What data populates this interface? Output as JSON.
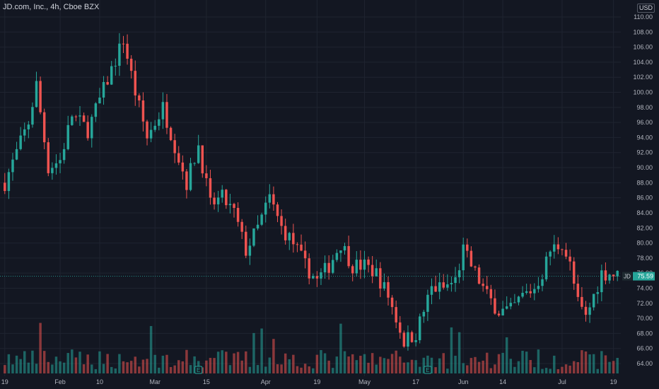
{
  "title": "JD.com, Inc., 4h, Cboe BZX",
  "currency": "USD",
  "ticker": "JD",
  "last_price_label": "75.59",
  "colors": {
    "background": "#131722",
    "up": "#26a69a",
    "down": "#ef5350",
    "grid": "#1f2430",
    "axis_text": "#b2b5be",
    "price_badge": "#26a69a"
  },
  "chart_data": {
    "type": "candlestick",
    "interval": "4h",
    "y_axis": {
      "position": "right",
      "ylim": [
        62.5,
        111.5
      ],
      "ticks": [
        64,
        66,
        68,
        70,
        72,
        74,
        76,
        78,
        80,
        82,
        84,
        86,
        88,
        90,
        92,
        94,
        96,
        98,
        100,
        102,
        104,
        106,
        108,
        110
      ]
    },
    "y_tick_labels": [
      "64.00",
      "66.00",
      "68.00",
      "70.00",
      "72.00",
      "74.00",
      "76.00",
      "78.00",
      "80.00",
      "82.00",
      "84.00",
      "86.00",
      "88.00",
      "90.00",
      "92.00",
      "94.00",
      "96.00",
      "98.00",
      "100.00",
      "102.00",
      "104.00",
      "106.00",
      "108.00",
      "110.00"
    ],
    "x_ticks": [
      {
        "label": "19",
        "bar": 0
      },
      {
        "label": "Feb",
        "bar": 14
      },
      {
        "label": "10",
        "bar": 24
      },
      {
        "label": "Mar",
        "bar": 38
      },
      {
        "label": "15",
        "bar": 51
      },
      {
        "label": "Apr",
        "bar": 66
      },
      {
        "label": "19",
        "bar": 79
      },
      {
        "label": "May",
        "bar": 91
      },
      {
        "label": "17",
        "bar": 104
      },
      {
        "label": "Jun",
        "bar": 116
      },
      {
        "label": "14",
        "bar": 126
      },
      {
        "label": "Jul",
        "bar": 141
      },
      {
        "label": "19",
        "bar": 154
      }
    ],
    "close_path_anchors": [
      [
        0,
        88.0
      ],
      [
        3,
        92.0
      ],
      [
        6,
        96.0
      ],
      [
        8,
        101.0
      ],
      [
        11,
        90.0
      ],
      [
        14,
        91.0
      ],
      [
        17,
        97.0
      ],
      [
        21,
        95.0
      ],
      [
        24,
        99.0
      ],
      [
        27,
        103.0
      ],
      [
        30,
        107.0
      ],
      [
        33,
        100.0
      ],
      [
        36,
        94.0
      ],
      [
        40,
        98.0
      ],
      [
        43,
        93.0
      ],
      [
        46,
        88.0
      ],
      [
        49,
        93.0
      ],
      [
        52,
        85.0
      ],
      [
        55,
        86.0
      ],
      [
        58,
        84.0
      ],
      [
        61,
        79.0
      ],
      [
        64,
        82.0
      ],
      [
        67,
        86.0
      ],
      [
        70,
        82.0
      ],
      [
        73,
        80.0
      ],
      [
        76,
        77.0
      ],
      [
        79,
        75.0
      ],
      [
        82,
        77.0
      ],
      [
        85,
        80.0
      ],
      [
        88,
        77.0
      ],
      [
        91,
        77.0
      ],
      [
        94,
        76.0
      ],
      [
        97,
        73.0
      ],
      [
        99,
        70.0
      ],
      [
        101,
        67.0
      ],
      [
        104,
        68.0
      ],
      [
        106,
        71.0
      ],
      [
        108,
        74.0
      ],
      [
        111,
        74.0
      ],
      [
        114,
        75.0
      ],
      [
        116,
        79.0
      ],
      [
        119,
        76.0
      ],
      [
        122,
        73.0
      ],
      [
        125,
        71.0
      ],
      [
        128,
        71.0
      ],
      [
        131,
        73.0
      ],
      [
        134,
        74.0
      ],
      [
        136,
        76.0
      ],
      [
        138,
        79.0
      ],
      [
        141,
        80.0
      ],
      [
        143,
        77.0
      ],
      [
        145,
        72.0
      ],
      [
        147,
        70.0
      ],
      [
        149,
        73.0
      ],
      [
        151,
        76.0
      ],
      [
        153,
        76.0
      ],
      [
        155,
        75.6
      ]
    ],
    "volume_markers": [
      {
        "label": "E",
        "bar": 49
      },
      {
        "label": "E",
        "bar": 107
      }
    ],
    "last_price": 75.59,
    "legend": "none",
    "grid": true
  }
}
